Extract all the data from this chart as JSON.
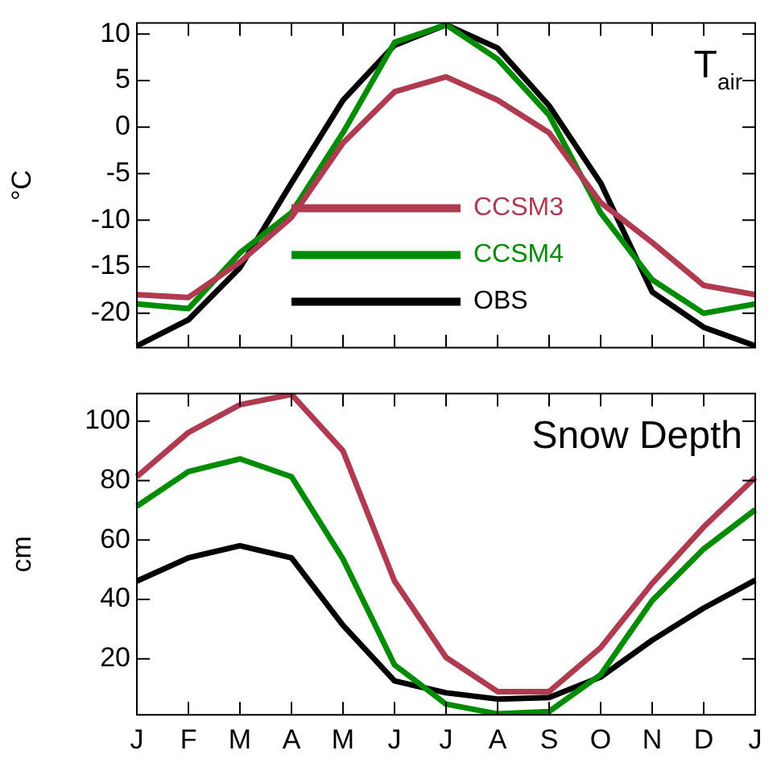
{
  "chart_data": [
    {
      "type": "line",
      "categories": [
        null,
        null,
        null,
        null,
        null,
        null,
        null,
        null,
        null,
        null,
        null,
        null,
        null
      ],
      "ylabel": "°C",
      "ylim": [
        -23.7,
        11.2
      ],
      "yticks": [
        -20,
        -15,
        -10,
        -5,
        0,
        5,
        10
      ],
      "tick_labels": "y",
      "legend": "bottom",
      "marker": "none",
      "line_style": "solid",
      "annotations": [
        "T$_{air}$"
      ],
      "series": [
        {
          "name": "CCSM3",
          "color": "#b03a50",
          "values": [
            -18.0,
            -18.3,
            -14.5,
            -9.7,
            -1.7,
            3.8,
            5.4,
            2.9,
            -0.6,
            -8.1,
            -12.4,
            -17.0,
            -18.0
          ]
        },
        {
          "name": "CCSM4",
          "color": "#008c00",
          "values": [
            -19.0,
            -19.5,
            -13.5,
            -9.2,
            -0.6,
            9.1,
            11.0,
            7.3,
            1.3,
            -9.2,
            -16.4,
            -20.0,
            -19.0
          ]
        },
        {
          "name": "OBS",
          "color": "#000000",
          "values": [
            -23.5,
            -20.7,
            -15.1,
            -6.0,
            2.9,
            8.8,
            11.0,
            8.5,
            2.3,
            -6.0,
            -17.7,
            -21.5,
            -23.5
          ]
        }
      ]
    },
    {
      "type": "line",
      "categories": [
        "J",
        "F",
        "M",
        "A",
        "M",
        "J",
        "J",
        "A",
        "S",
        "O",
        "N",
        "D",
        "J"
      ],
      "ylabel": "cm",
      "ylim": [
        1.2,
        109.3
      ],
      "yticks": [
        20,
        40,
        60,
        80,
        100
      ],
      "marker": "none",
      "line_style": "solid",
      "annotations": [
        "Snow Depth"
      ],
      "series": [
        {
          "color": "#b03a50",
          "values": [
            81.3,
            96.2,
            105.5,
            109,
            90,
            46.2,
            20.5,
            9,
            9,
            23.8,
            45.4,
            64.4,
            81
          ]
        },
        {
          "color": "#008c00",
          "values": [
            71.4,
            83,
            87.3,
            81.3,
            53.6,
            18,
            4.8,
            1.5,
            2.3,
            14.7,
            39.6,
            57,
            70.2
          ]
        },
        {
          "color": "#000000",
          "values": [
            46.2,
            54,
            58.1,
            54,
            31.3,
            12.6,
            8.6,
            6.5,
            7,
            13.9,
            26.3,
            37.1,
            46.5
          ]
        }
      ]
    }
  ]
}
